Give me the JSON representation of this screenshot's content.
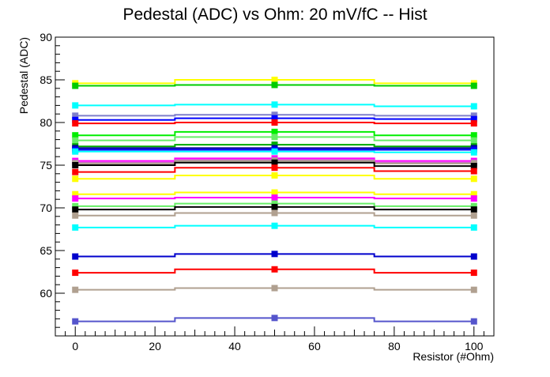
{
  "chart_data": {
    "type": "line",
    "title": "Pedestal (ADC) vs Ohm: 20 mV/fC -- Hist",
    "xlabel": "Resistor (#Ohm)",
    "ylabel": "Pedestal (ADC)",
    "xlim": [
      -5,
      105
    ],
    "ylim": [
      55,
      90
    ],
    "x_ticks": [
      "0",
      "20",
      "40",
      "60",
      "80",
      "100"
    ],
    "y_ticks": [
      "60",
      "65",
      "70",
      "75",
      "80",
      "85",
      "90"
    ],
    "x": [
      0,
      50,
      100
    ],
    "legend": "none",
    "grid": false,
    "series": [
      {
        "color": "#ffff00",
        "values": [
          84.6,
          85.0,
          84.6
        ]
      },
      {
        "color": "#00cc00",
        "values": [
          84.3,
          84.4,
          84.3
        ]
      },
      {
        "color": "#00ffff",
        "values": [
          82.0,
          82.1,
          81.9
        ]
      },
      {
        "color": "#7f7fcc",
        "values": [
          80.8,
          80.9,
          80.8
        ]
      },
      {
        "color": "#0000ff",
        "values": [
          80.3,
          80.5,
          80.4
        ]
      },
      {
        "color": "#ff0000",
        "values": [
          79.9,
          80.0,
          79.9
        ]
      },
      {
        "color": "#00ee00",
        "values": [
          78.5,
          78.9,
          78.5
        ]
      },
      {
        "color": "#66ee66",
        "values": [
          77.9,
          78.3,
          77.9
        ]
      },
      {
        "color": "#00aa00",
        "values": [
          77.2,
          77.4,
          77.2
        ]
      },
      {
        "color": "#000099",
        "values": [
          77.0,
          77.0,
          77.0
        ]
      },
      {
        "color": "#0000ff",
        "values": [
          76.8,
          76.8,
          76.8
        ]
      },
      {
        "color": "#00ffff",
        "values": [
          76.6,
          76.6,
          76.5
        ]
      },
      {
        "color": "#ff00ff",
        "values": [
          75.5,
          75.8,
          75.5
        ]
      },
      {
        "color": "#cc66cc",
        "values": [
          75.3,
          75.6,
          75.3
        ]
      },
      {
        "color": "#b0a090",
        "values": [
          75.2,
          75.5,
          75.2
        ]
      },
      {
        "color": "#000000",
        "values": [
          75.0,
          75.3,
          74.9
        ]
      },
      {
        "color": "#ff0000",
        "values": [
          74.2,
          74.7,
          74.3
        ]
      },
      {
        "color": "#ffff00",
        "values": [
          73.4,
          73.8,
          73.4
        ]
      },
      {
        "color": "#ffff00",
        "values": [
          71.6,
          71.8,
          71.6
        ]
      },
      {
        "color": "#ff00ff",
        "values": [
          71.1,
          71.2,
          71.1
        ]
      },
      {
        "color": "#66ee66",
        "values": [
          70.2,
          70.5,
          70.2
        ]
      },
      {
        "color": "#000000",
        "values": [
          69.8,
          70.1,
          69.8
        ]
      },
      {
        "color": "#b0a090",
        "values": [
          69.1,
          69.4,
          69.1
        ]
      },
      {
        "color": "#00ffff",
        "values": [
          67.7,
          67.9,
          67.7
        ]
      },
      {
        "color": "#0000cc",
        "values": [
          64.3,
          64.6,
          64.3
        ]
      },
      {
        "color": "#ff0000",
        "values": [
          62.4,
          62.8,
          62.4
        ]
      },
      {
        "color": "#b0a090",
        "values": [
          60.4,
          60.6,
          60.4
        ]
      },
      {
        "color": "#5555cc",
        "values": [
          56.7,
          57.1,
          56.7
        ]
      }
    ]
  }
}
